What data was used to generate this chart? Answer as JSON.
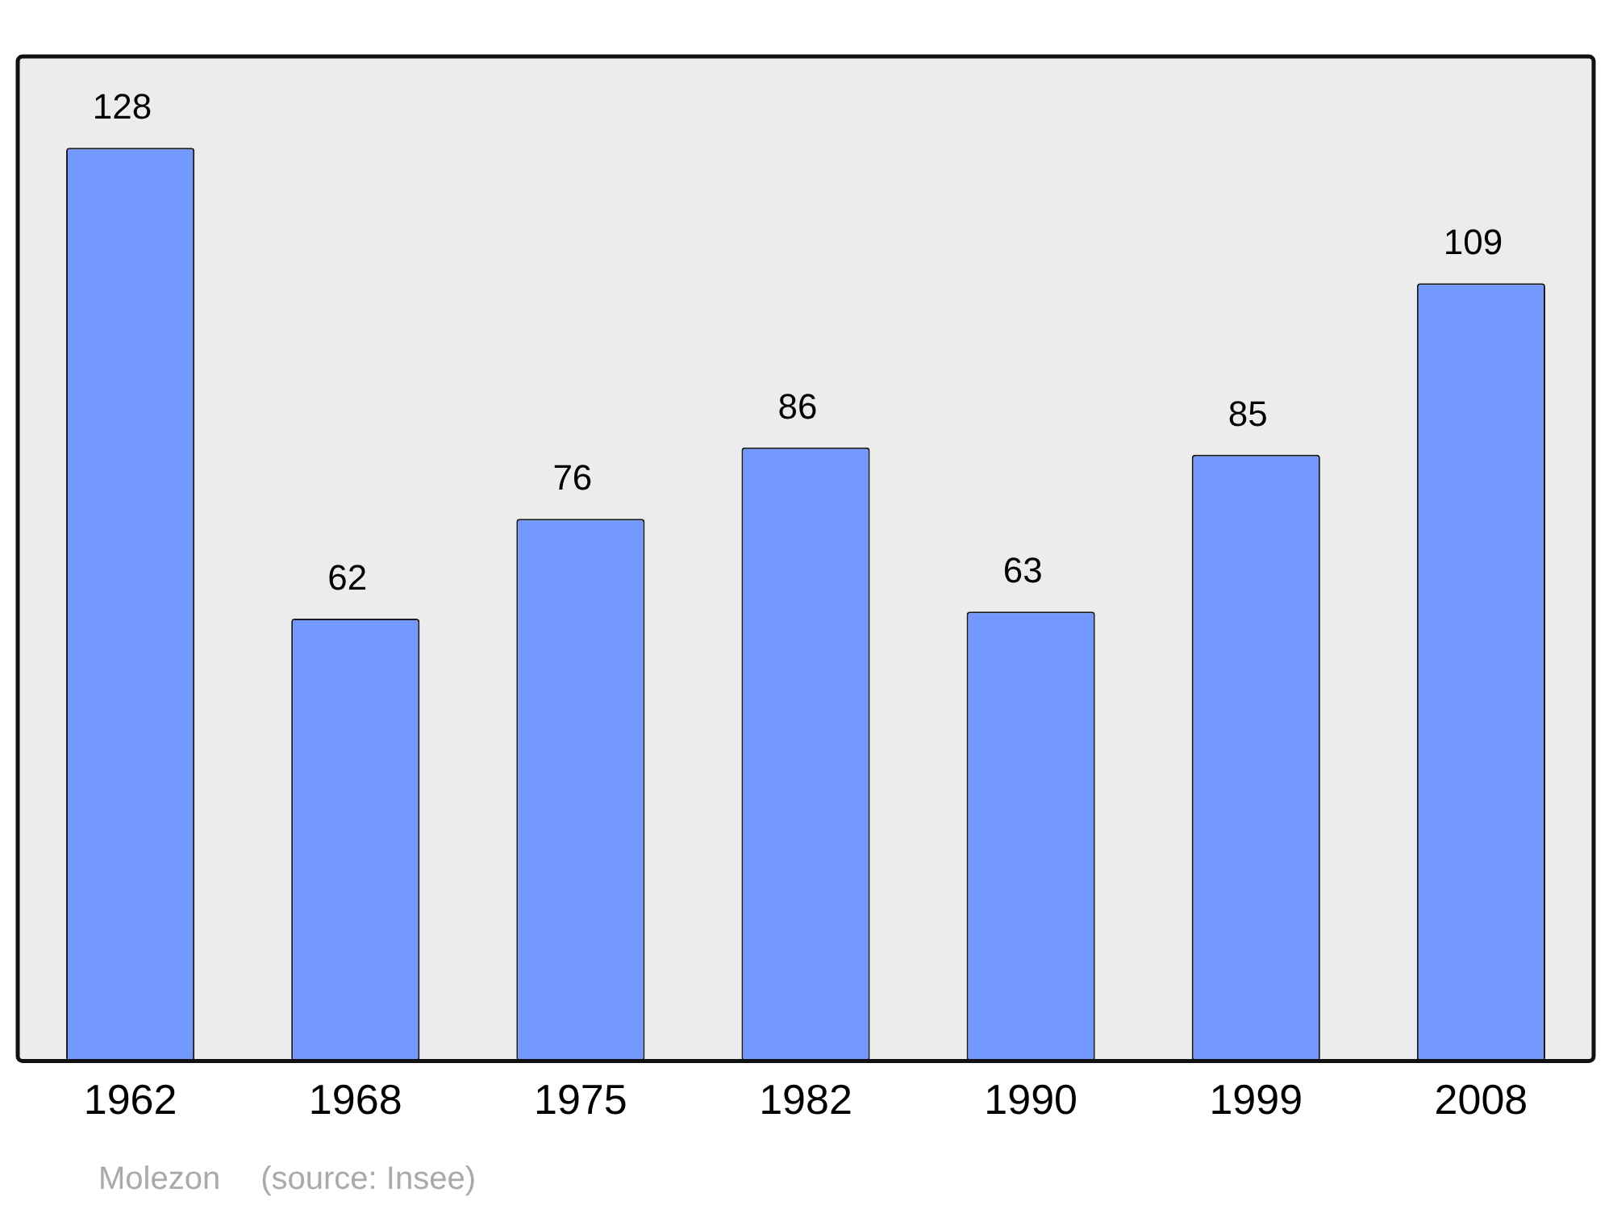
{
  "chart_data": {
    "type": "bar",
    "categories": [
      "1962",
      "1968",
      "1975",
      "1982",
      "1990",
      "1999",
      "2008"
    ],
    "values": [
      128,
      62,
      76,
      86,
      63,
      85,
      109
    ],
    "color": "#7399ff",
    "data_labels": true,
    "grid": false,
    "legend": false,
    "tick_labels": "x",
    "annotations": [
      "Molezon",
      "(source: Insee)"
    ]
  }
}
